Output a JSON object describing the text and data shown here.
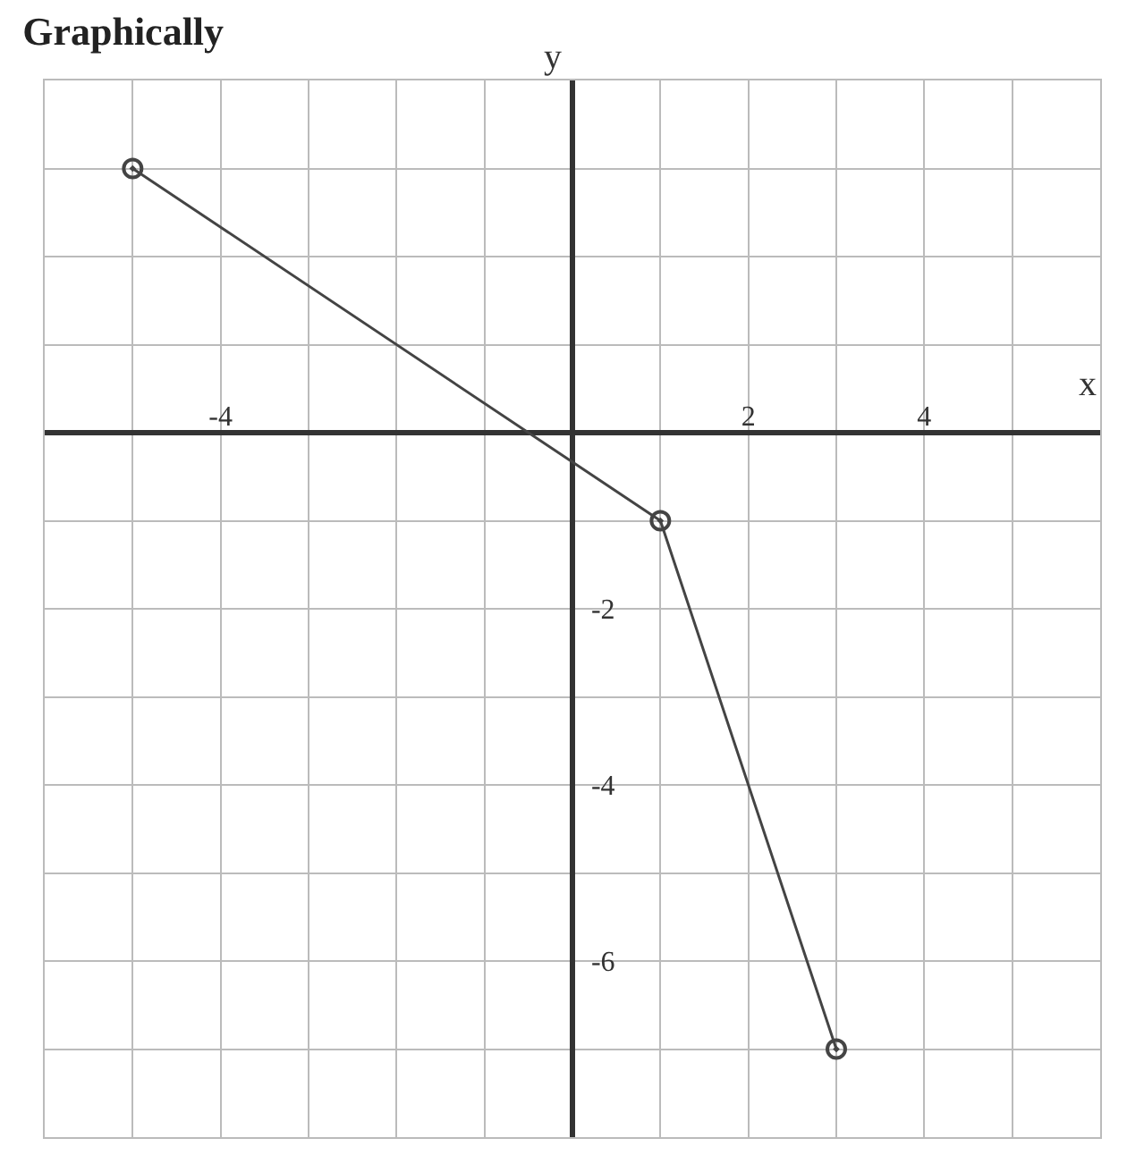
{
  "chart_data": {
    "type": "line",
    "title": "Graphically",
    "xlabel": "x",
    "ylabel": "y",
    "x": [
      -5,
      1,
      3
    ],
    "series": [
      {
        "color": "#444444",
        "values": [
          3,
          -1,
          -7
        ]
      }
    ],
    "xlim": [
      -6,
      6
    ],
    "ylim": [
      -8,
      4
    ],
    "xticks": [
      {
        "value": -6,
        "label": null
      },
      {
        "value": -5,
        "label": null
      },
      -4,
      {
        "value": -3,
        "label": null
      },
      {
        "value": -2,
        "label": null
      },
      {
        "value": -1,
        "label": null
      },
      {
        "value": 0,
        "label": null
      },
      {
        "value": 1,
        "label": null
      },
      2,
      {
        "value": 3,
        "label": null
      },
      4,
      {
        "value": 5,
        "label": null
      },
      {
        "value": 6,
        "label": null
      }
    ],
    "yticks": [
      {
        "value": -8,
        "label": null
      },
      {
        "value": -7,
        "label": null
      },
      -6,
      {
        "value": -5,
        "label": null
      },
      -4,
      {
        "value": -3,
        "label": null
      },
      -2,
      {
        "value": -1,
        "label": null
      },
      {
        "value": 0,
        "label": null
      },
      {
        "value": 1,
        "label": null
      },
      {
        "value": 2,
        "label": null
      },
      {
        "value": 3,
        "label": null
      },
      {
        "value": 4,
        "label": null
      }
    ],
    "grid": true,
    "marker": "circle",
    "line_style": "solid"
  }
}
